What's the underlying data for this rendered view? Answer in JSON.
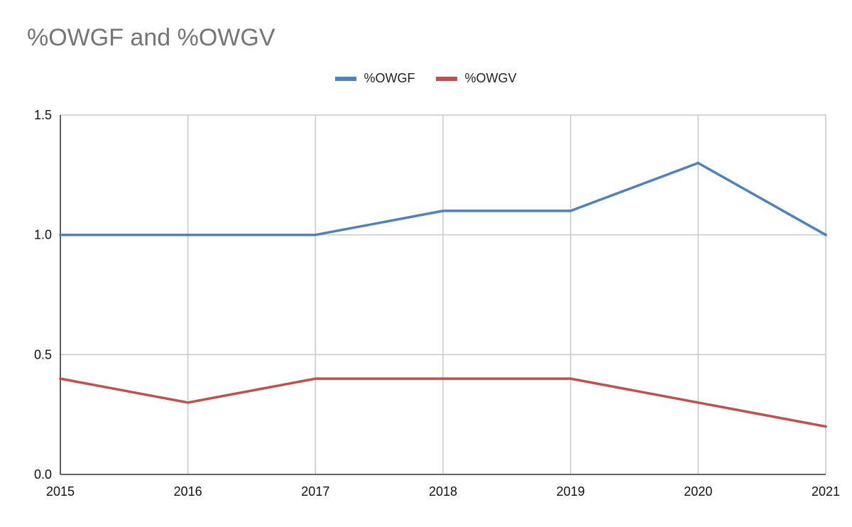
{
  "chart_data": {
    "type": "line",
    "title": "%OWGF and %OWGV",
    "xlabel": "",
    "ylabel": "",
    "x": [
      "2015",
      "2016",
      "2017",
      "2018",
      "2019",
      "2020",
      "2021"
    ],
    "ylim": [
      0,
      1.5
    ],
    "yticks": [
      "0.0",
      "0.5",
      "1.0",
      "1.5"
    ],
    "grid": true,
    "legend_position": "top-center",
    "series": [
      {
        "name": "%OWGF",
        "color": "#4F81BD",
        "values": [
          1.0,
          1.0,
          1.0,
          1.1,
          1.1,
          1.3,
          1.0
        ]
      },
      {
        "name": "%OWGV",
        "color": "#C0504D",
        "values": [
          0.4,
          0.3,
          0.4,
          0.4,
          0.4,
          0.3,
          0.2
        ]
      }
    ]
  }
}
